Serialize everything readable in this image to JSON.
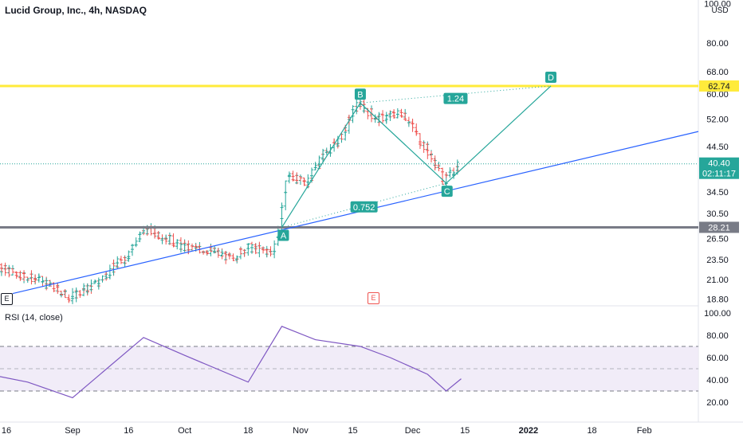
{
  "header": {
    "title": "Lucid Group, Inc., 4h, NASDAQ"
  },
  "price_axis": {
    "currency": "USD",
    "ticks": [
      "100.00",
      "80.00",
      "68.00",
      "60.00",
      "52.00",
      "44.50",
      "34.50",
      "30.50",
      "26.50",
      "23.50",
      "21.00",
      "18.80"
    ],
    "tick_values": [
      100,
      80,
      68,
      60,
      52,
      44.5,
      34.5,
      30.5,
      26.5,
      23.5,
      21,
      18.8
    ],
    "labels": {
      "level_high": "62.74",
      "last_price": "40.40",
      "countdown": "02:11:17",
      "level_low": "28.21"
    }
  },
  "rsi": {
    "title": "RSI (14, close)",
    "ticks": [
      "100.00",
      "80.00",
      "60.00",
      "40.00",
      "20.00"
    ],
    "tick_values": [
      100,
      80,
      60,
      40,
      20
    ],
    "band_upper": 70,
    "band_lower": 30,
    "midline": 50
  },
  "time_axis": {
    "ticks": [
      "16",
      "Sep",
      "16",
      "Oct",
      "18",
      "Nov",
      "15",
      "Dec",
      "15",
      "2022",
      "18",
      "Feb"
    ],
    "bold": "2022"
  },
  "pattern": {
    "points": [
      "A",
      "B",
      "C",
      "D"
    ],
    "ratio_ac": "0.752",
    "ratio_bd": "1.24"
  },
  "events": {
    "earnings_left": "E",
    "earnings_mid": "E"
  },
  "colors": {
    "up": "#26a69a",
    "down": "#ef5350",
    "level_high": "#ffeb3b",
    "level_low": "#787b86",
    "trendline": "#2962ff",
    "pattern": "#26a69a",
    "rsi_line": "#7e57c2",
    "rsi_band": "#ede7f6"
  },
  "chart_data": {
    "type": "candlestick",
    "title": "Lucid Group, Inc., 4h, NASDAQ",
    "x": [
      "2021-08-02",
      "2021-08-16",
      "2021-09-01",
      "2021-09-16",
      "2021-10-01",
      "2021-10-18",
      "2021-11-01",
      "2021-11-15",
      "2021-12-01",
      "2021-12-15"
    ],
    "close": [
      24.5,
      21.5,
      18.6,
      25.5,
      25.0,
      24.5,
      37.0,
      52.0,
      48.5,
      40.4
    ],
    "price_series_approx": [
      {
        "x": "2021-08-02",
        "price": 24.5
      },
      {
        "x": "2021-08-09",
        "price": 23.2
      },
      {
        "x": "2021-08-16",
        "price": 22.0
      },
      {
        "x": "2021-08-23",
        "price": 21.0
      },
      {
        "x": "2021-09-01",
        "price": 19.0
      },
      {
        "x": "2021-09-08",
        "price": 20.5
      },
      {
        "x": "2021-09-16",
        "price": 24.0
      },
      {
        "x": "2021-09-21",
        "price": 28.0
      },
      {
        "x": "2021-09-27",
        "price": 26.5
      },
      {
        "x": "2021-10-01",
        "price": 25.2
      },
      {
        "x": "2021-10-08",
        "price": 24.8
      },
      {
        "x": "2021-10-14",
        "price": 23.6
      },
      {
        "x": "2021-10-18",
        "price": 25.2
      },
      {
        "x": "2021-10-25",
        "price": 24.5
      },
      {
        "x": "2021-10-27",
        "price": 28.2
      },
      {
        "x": "2021-10-29",
        "price": 38.0
      },
      {
        "x": "2021-11-03",
        "price": 36.0
      },
      {
        "x": "2021-11-08",
        "price": 43.0
      },
      {
        "x": "2021-11-12",
        "price": 46.0
      },
      {
        "x": "2021-11-17",
        "price": 57.0
      },
      {
        "x": "2021-11-22",
        "price": 52.0
      },
      {
        "x": "2021-11-29",
        "price": 54.0
      },
      {
        "x": "2021-12-03",
        "price": 47.0
      },
      {
        "x": "2021-12-08",
        "price": 40.0
      },
      {
        "x": "2021-12-10",
        "price": 36.5
      },
      {
        "x": "2021-12-14",
        "price": 40.4
      }
    ],
    "horizontal_levels": [
      62.74,
      28.21
    ],
    "last_price": 40.4,
    "rsi_approx": [
      {
        "x": "2021-08-02",
        "rsi": 50
      },
      {
        "x": "2021-08-20",
        "rsi": 38
      },
      {
        "x": "2021-09-01",
        "rsi": 24
      },
      {
        "x": "2021-09-20",
        "rsi": 78
      },
      {
        "x": "2021-10-01",
        "rsi": 62
      },
      {
        "x": "2021-10-18",
        "rsi": 38
      },
      {
        "x": "2021-10-27",
        "rsi": 88
      },
      {
        "x": "2021-11-05",
        "rsi": 76
      },
      {
        "x": "2021-11-17",
        "rsi": 70
      },
      {
        "x": "2021-11-25",
        "rsi": 60
      },
      {
        "x": "2021-12-05",
        "rsi": 45
      },
      {
        "x": "2021-12-10",
        "rsi": 30
      },
      {
        "x": "2021-12-14",
        "rsi": 41
      }
    ],
    "ylim": [
      18.8,
      100
    ],
    "scale": "log"
  }
}
